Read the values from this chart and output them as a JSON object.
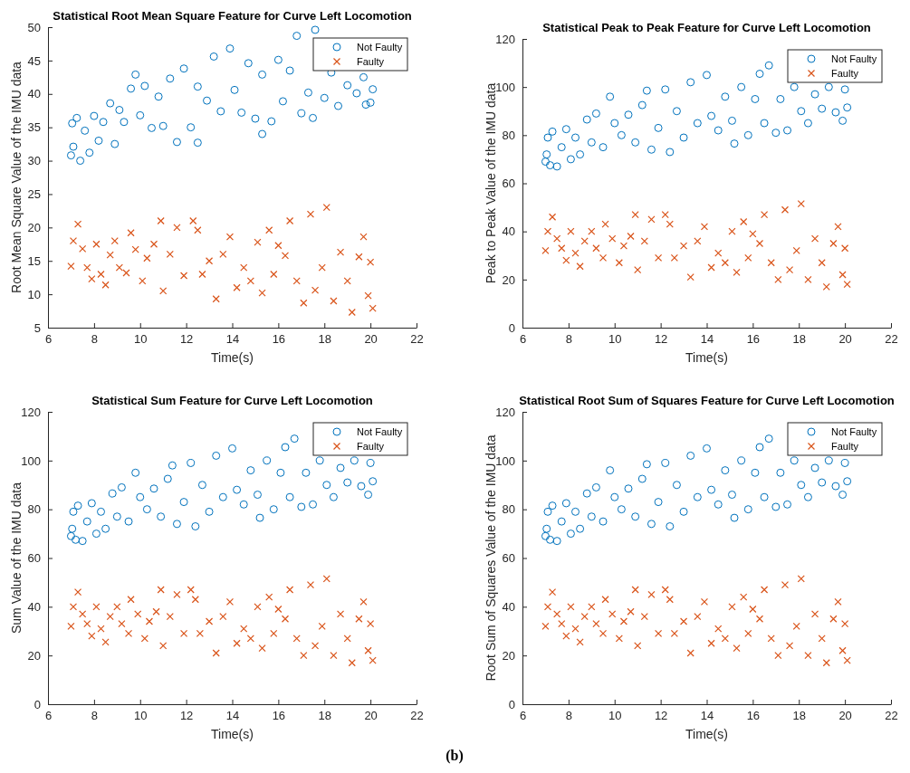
{
  "chart_data": [
    {
      "type": "scatter",
      "title": "Statistical Root Mean Square Feature for Curve Left Locomotion",
      "xlabel": "Time(s)",
      "ylabel": "Root Mean Square Value of the IMU data",
      "xlim": [
        6,
        22
      ],
      "xticks": [
        6,
        8,
        10,
        12,
        14,
        16,
        18,
        20,
        22
      ],
      "ylim": [
        5,
        50
      ],
      "yticks": [
        5,
        10,
        15,
        20,
        25,
        30,
        35,
        40,
        45,
        50
      ],
      "legend": "top right",
      "grid": false,
      "series": [
        {
          "name": "Not Faulty",
          "color": "#0072bd",
          "marker": "circle",
          "x": [
            7.0,
            7.05,
            7.1,
            7.25,
            7.4,
            7.6,
            7.8,
            8.0,
            8.2,
            8.4,
            8.7,
            8.9,
            9.1,
            9.3,
            9.6,
            9.8,
            10.0,
            10.2,
            10.5,
            10.8,
            11.0,
            11.3,
            11.6,
            11.9,
            12.2,
            12.5,
            12.5,
            12.9,
            13.2,
            13.5,
            13.9,
            14.1,
            14.4,
            14.7,
            15.0,
            15.3,
            15.3,
            15.7,
            16.0,
            16.2,
            16.5,
            16.8,
            17.0,
            17.3,
            17.5,
            17.6,
            18.0,
            18.3,
            18.6,
            19.0,
            19.4,
            19.8,
            20.0,
            20.1,
            19.7
          ],
          "values": [
            30.8,
            35.6,
            32.1,
            36.4,
            30.0,
            34.5,
            31.2,
            36.7,
            33.0,
            35.8,
            38.6,
            32.5,
            37.6,
            35.8,
            40.8,
            42.9,
            36.8,
            41.2,
            34.9,
            39.6,
            35.2,
            42.3,
            32.8,
            43.8,
            35.0,
            41.1,
            32.7,
            39.0,
            45.6,
            37.4,
            46.8,
            40.6,
            37.2,
            44.6,
            36.3,
            34.0,
            42.9,
            35.9,
            45.1,
            38.9,
            43.5,
            48.7,
            37.1,
            40.2,
            36.4,
            49.6,
            39.4,
            43.2,
            38.2,
            41.3,
            40.1,
            38.4,
            38.7,
            40.7,
            42.5
          ]
        },
        {
          "name": "Faulty",
          "color": "#d95319",
          "marker": "cross",
          "x": [
            7.0,
            7.1,
            7.3,
            7.5,
            7.7,
            7.9,
            8.1,
            8.3,
            8.5,
            8.7,
            8.9,
            9.1,
            9.4,
            9.6,
            9.8,
            10.1,
            10.3,
            10.6,
            10.9,
            11.0,
            11.3,
            11.6,
            11.9,
            12.3,
            12.5,
            12.7,
            13.0,
            13.3,
            13.6,
            13.9,
            14.2,
            14.5,
            14.8,
            15.1,
            15.3,
            15.6,
            15.8,
            16.0,
            16.3,
            16.5,
            16.8,
            17.1,
            17.4,
            17.6,
            17.9,
            18.1,
            18.4,
            18.7,
            19.0,
            19.2,
            19.5,
            19.7,
            19.9,
            20.0,
            20.1
          ],
          "values": [
            14.2,
            18.0,
            20.5,
            16.8,
            14.0,
            12.3,
            17.5,
            13.0,
            11.4,
            15.9,
            18.0,
            14.0,
            13.2,
            19.2,
            16.7,
            12.0,
            15.4,
            17.5,
            21.0,
            10.5,
            16.0,
            20.0,
            12.8,
            21.0,
            19.6,
            13.0,
            15.0,
            9.3,
            16.0,
            18.6,
            11.0,
            14.0,
            12.0,
            17.8,
            10.2,
            19.6,
            13.0,
            17.3,
            15.8,
            21.0,
            12.0,
            8.7,
            22.0,
            10.6,
            14.0,
            23.0,
            9.0,
            16.3,
            12.0,
            7.3,
            15.6,
            18.6,
            9.8,
            14.8,
            7.9
          ]
        }
      ]
    },
    {
      "type": "scatter",
      "title": "Statistical Peak to Peak Feature for Curve Left Locomotion",
      "xlabel": "Time(s)",
      "ylabel": "Peak to Peak Value of the IMU data",
      "xlim": [
        6,
        22
      ],
      "xticks": [
        6,
        8,
        10,
        12,
        14,
        16,
        18,
        20,
        22
      ],
      "ylim": [
        0,
        120
      ],
      "yticks": [
        0,
        20,
        40,
        60,
        80,
        100,
        120
      ],
      "legend": "top right",
      "grid": false,
      "series": [
        {
          "name": "Not Faulty",
          "color": "#0072bd",
          "marker": "circle",
          "x": [
            7.0,
            7.05,
            7.1,
            7.2,
            7.3,
            7.5,
            7.7,
            7.9,
            8.1,
            8.3,
            8.5,
            8.8,
            9.0,
            9.2,
            9.5,
            9.8,
            10.0,
            10.3,
            10.6,
            10.9,
            11.2,
            11.4,
            11.6,
            11.9,
            12.2,
            12.4,
            12.7,
            13.0,
            13.3,
            13.6,
            14.0,
            14.2,
            14.5,
            14.8,
            15.1,
            15.2,
            15.5,
            15.8,
            16.1,
            16.3,
            16.5,
            16.7,
            17.0,
            17.2,
            17.5,
            17.8,
            18.1,
            18.4,
            18.7,
            19.0,
            19.3,
            19.6,
            19.9,
            20.1,
            20.0
          ],
          "values": [
            69,
            72,
            79,
            67.5,
            81.5,
            67,
            75,
            82.5,
            70,
            79,
            72,
            86.5,
            77,
            89,
            75,
            96,
            85,
            80,
            88.5,
            77,
            92.5,
            98.5,
            74,
            83,
            99,
            73,
            90,
            79,
            102,
            85,
            105,
            88,
            82,
            96,
            86,
            76.5,
            100,
            80,
            95,
            105.5,
            85,
            109,
            81,
            95,
            82,
            100,
            90,
            85,
            97,
            91,
            100,
            89.5,
            86,
            91.5,
            99
          ]
        },
        {
          "name": "Faulty",
          "color": "#d95319",
          "marker": "cross",
          "x": [
            7.0,
            7.1,
            7.3,
            7.5,
            7.7,
            7.9,
            8.1,
            8.3,
            8.5,
            8.7,
            9.0,
            9.2,
            9.5,
            9.6,
            9.9,
            10.2,
            10.4,
            10.7,
            10.9,
            11.0,
            11.3,
            11.6,
            11.9,
            12.2,
            12.4,
            12.6,
            13.0,
            13.3,
            13.6,
            13.9,
            14.2,
            14.5,
            14.8,
            15.1,
            15.3,
            15.6,
            15.8,
            16.0,
            16.3,
            16.5,
            16.8,
            17.1,
            17.4,
            17.6,
            17.9,
            18.1,
            18.4,
            18.7,
            19.0,
            19.2,
            19.5,
            19.7,
            19.9,
            20.0,
            20.1
          ],
          "values": [
            32,
            40,
            46,
            37,
            33,
            28,
            40,
            31,
            25.5,
            36,
            40,
            33,
            29,
            43,
            37,
            27,
            34,
            38,
            47,
            24,
            36,
            45,
            29,
            47,
            43,
            29,
            34,
            21,
            36,
            42,
            25,
            31,
            27,
            40,
            23,
            44,
            29,
            39,
            35,
            47,
            27,
            20,
            49,
            24,
            32,
            51.5,
            20,
            37,
            27,
            17,
            35,
            42,
            22,
            33,
            18
          ]
        }
      ]
    },
    {
      "type": "scatter",
      "title": "Statistical Sum Feature for Curve Left Locomotion",
      "xlabel": "Time(s)",
      "ylabel": "Sum Value of the IMU data",
      "xlim": [
        6,
        22
      ],
      "xticks": [
        6,
        8,
        10,
        12,
        14,
        16,
        18,
        20,
        22
      ],
      "ylim": [
        0,
        120
      ],
      "yticks": [
        0,
        20,
        40,
        60,
        80,
        100,
        120
      ],
      "legend": "top right",
      "grid": false,
      "series": [
        {
          "name": "Not Faulty",
          "color": "#0072bd",
          "marker": "circle",
          "x": [
            7.0,
            7.05,
            7.1,
            7.2,
            7.3,
            7.5,
            7.7,
            7.9,
            8.1,
            8.3,
            8.5,
            8.8,
            9.0,
            9.2,
            9.5,
            9.8,
            10.0,
            10.3,
            10.6,
            10.9,
            11.2,
            11.4,
            11.6,
            11.9,
            12.2,
            12.4,
            12.7,
            13.0,
            13.3,
            13.6,
            14.0,
            14.2,
            14.5,
            14.8,
            15.1,
            15.2,
            15.5,
            15.8,
            16.1,
            16.3,
            16.5,
            16.7,
            17.0,
            17.2,
            17.5,
            17.8,
            18.1,
            18.4,
            18.7,
            19.0,
            19.3,
            19.6,
            19.9,
            20.1,
            20.0
          ],
          "values": [
            69,
            72,
            79,
            67.5,
            81.5,
            67,
            75,
            82.5,
            70,
            79,
            72,
            86.5,
            77,
            89,
            75,
            95,
            85,
            80,
            88.5,
            77,
            92.5,
            98,
            74,
            83,
            99,
            73,
            90,
            79,
            102,
            85,
            105,
            88,
            82,
            96,
            86,
            76.5,
            100,
            80,
            95,
            105.5,
            85,
            109,
            81,
            95,
            82,
            100,
            90,
            85,
            97,
            91,
            100,
            89.5,
            86,
            91.5,
            99
          ]
        },
        {
          "name": "Faulty",
          "color": "#d95319",
          "marker": "cross",
          "x": [
            7.0,
            7.1,
            7.3,
            7.5,
            7.7,
            7.9,
            8.1,
            8.3,
            8.5,
            8.7,
            9.0,
            9.2,
            9.5,
            9.6,
            9.9,
            10.2,
            10.4,
            10.7,
            10.9,
            11.0,
            11.3,
            11.6,
            11.9,
            12.2,
            12.4,
            12.6,
            13.0,
            13.3,
            13.6,
            13.9,
            14.2,
            14.5,
            14.8,
            15.1,
            15.3,
            15.6,
            15.8,
            16.0,
            16.3,
            16.5,
            16.8,
            17.1,
            17.4,
            17.6,
            17.9,
            18.1,
            18.4,
            18.7,
            19.0,
            19.2,
            19.5,
            19.7,
            19.9,
            20.0,
            20.1
          ],
          "values": [
            32,
            40,
            46,
            37,
            33,
            28,
            40,
            31,
            25.5,
            36,
            40,
            33,
            29,
            43,
            37,
            27,
            34,
            38,
            47,
            24,
            36,
            45,
            29,
            47,
            43,
            29,
            34,
            21,
            36,
            42,
            25,
            31,
            27,
            40,
            23,
            44,
            29,
            39,
            35,
            47,
            27,
            20,
            49,
            24,
            32,
            51.5,
            20,
            37,
            27,
            17,
            35,
            42,
            22,
            33,
            18
          ]
        }
      ]
    },
    {
      "type": "scatter",
      "title": "Statistical Root Sum of Squares Feature for Curve Left Locomotion",
      "xlabel": "Time(s)",
      "ylabel": "Root Sum of Squares Value of the IMU data",
      "xlim": [
        6,
        22
      ],
      "xticks": [
        6,
        8,
        10,
        12,
        14,
        16,
        18,
        20,
        22
      ],
      "ylim": [
        0,
        120
      ],
      "yticks": [
        0,
        20,
        40,
        60,
        80,
        100,
        120
      ],
      "legend": "top right",
      "grid": false,
      "annotations": [
        "(b)"
      ],
      "series": [
        {
          "name": "Not Faulty",
          "color": "#0072bd",
          "marker": "circle",
          "x": [
            7.0,
            7.05,
            7.1,
            7.2,
            7.3,
            7.5,
            7.7,
            7.9,
            8.1,
            8.3,
            8.5,
            8.8,
            9.0,
            9.2,
            9.5,
            9.8,
            10.0,
            10.3,
            10.6,
            10.9,
            11.2,
            11.4,
            11.6,
            11.9,
            12.2,
            12.4,
            12.7,
            13.0,
            13.3,
            13.6,
            14.0,
            14.2,
            14.5,
            14.8,
            15.1,
            15.2,
            15.5,
            15.8,
            16.1,
            16.3,
            16.5,
            16.7,
            17.0,
            17.2,
            17.5,
            17.8,
            18.1,
            18.4,
            18.7,
            19.0,
            19.3,
            19.6,
            19.9,
            20.1,
            20.0
          ],
          "values": [
            69,
            72,
            79,
            67.5,
            81.5,
            67,
            75,
            82.5,
            70,
            79,
            72,
            86.5,
            77,
            89,
            75,
            96,
            85,
            80,
            88.5,
            77,
            92.5,
            98.5,
            74,
            83,
            99,
            73,
            90,
            79,
            102,
            85,
            105,
            88,
            82,
            96,
            86,
            76.5,
            100,
            80,
            95,
            105.5,
            85,
            109,
            81,
            95,
            82,
            100,
            90,
            85,
            97,
            91,
            100,
            89.5,
            86,
            91.5,
            99
          ]
        },
        {
          "name": "Faulty",
          "color": "#d95319",
          "marker": "cross",
          "x": [
            7.0,
            7.1,
            7.3,
            7.5,
            7.7,
            7.9,
            8.1,
            8.3,
            8.5,
            8.7,
            9.0,
            9.2,
            9.5,
            9.6,
            9.9,
            10.2,
            10.4,
            10.7,
            10.9,
            11.0,
            11.3,
            11.6,
            11.9,
            12.2,
            12.4,
            12.6,
            13.0,
            13.3,
            13.6,
            13.9,
            14.2,
            14.5,
            14.8,
            15.1,
            15.3,
            15.6,
            15.8,
            16.0,
            16.3,
            16.5,
            16.8,
            17.1,
            17.4,
            17.6,
            17.9,
            18.1,
            18.4,
            18.7,
            19.0,
            19.2,
            19.5,
            19.7,
            19.9,
            20.0,
            20.1
          ],
          "values": [
            32,
            40,
            46,
            37,
            33,
            28,
            40,
            31,
            25.5,
            36,
            40,
            33,
            29,
            43,
            37,
            27,
            34,
            38,
            47,
            24,
            36,
            45,
            29,
            47,
            43,
            29,
            34,
            21,
            36,
            42,
            25,
            31,
            27,
            40,
            23,
            44,
            29,
            39,
            35,
            47,
            27,
            20,
            49,
            24,
            32,
            51.5,
            20,
            37,
            27,
            17,
            35,
            42,
            22,
            33,
            18
          ]
        }
      ]
    }
  ]
}
